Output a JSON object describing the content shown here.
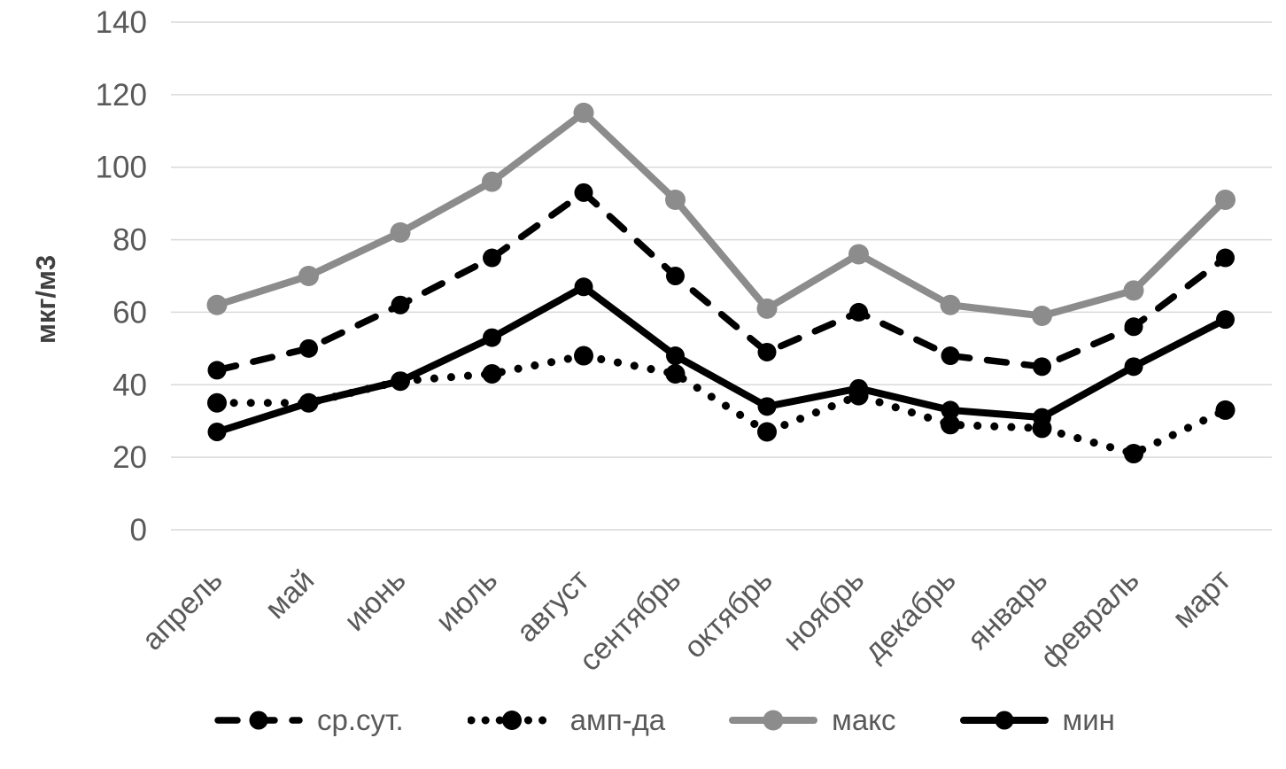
{
  "theme": {
    "background": "#ffffff",
    "grid_color": "#d9d9d9",
    "text_color": "#595959",
    "axis_title_color": "#404040"
  },
  "chart_data": {
    "type": "line",
    "title": "",
    "xlabel": "",
    "ylabel": "мкг/м3",
    "ylim": [
      0,
      140
    ],
    "yticks": [
      0,
      20,
      40,
      60,
      80,
      100,
      120,
      140
    ],
    "grid": true,
    "legend_position": "bottom",
    "categories": [
      "апрель",
      "май",
      "июнь",
      "июль",
      "август",
      "сентябрь",
      "октябрь",
      "ноябрь",
      "декабрь",
      "январь",
      "февраль",
      "март"
    ],
    "series": [
      {
        "id": "avg-daily",
        "name": "ср.сут.",
        "style": "dashed",
        "color": "#000000",
        "width": 7.5,
        "marker_r": 10.5,
        "values": [
          44,
          50,
          62,
          75,
          93,
          70,
          49,
          60,
          48,
          45,
          56,
          75
        ]
      },
      {
        "id": "amplitude",
        "name": "амп-да",
        "style": "dotted",
        "color": "#000000",
        "width": 9,
        "marker_r": 11,
        "values": [
          35,
          35,
          41,
          43,
          48,
          43,
          27,
          37,
          29,
          28,
          21,
          33
        ]
      },
      {
        "id": "max",
        "name": "макс",
        "style": "solid",
        "color": "#8c8c8c",
        "width": 8,
        "marker_r": 11.5,
        "values": [
          62,
          70,
          82,
          96,
          115,
          91,
          61,
          76,
          62,
          59,
          66,
          91
        ]
      },
      {
        "id": "min",
        "name": "мин",
        "style": "solid",
        "color": "#000000",
        "width": 8,
        "marker_r": 10.5,
        "values": [
          27,
          35,
          41,
          53,
          67,
          48,
          34,
          39,
          33,
          31,
          45,
          58
        ]
      }
    ]
  }
}
